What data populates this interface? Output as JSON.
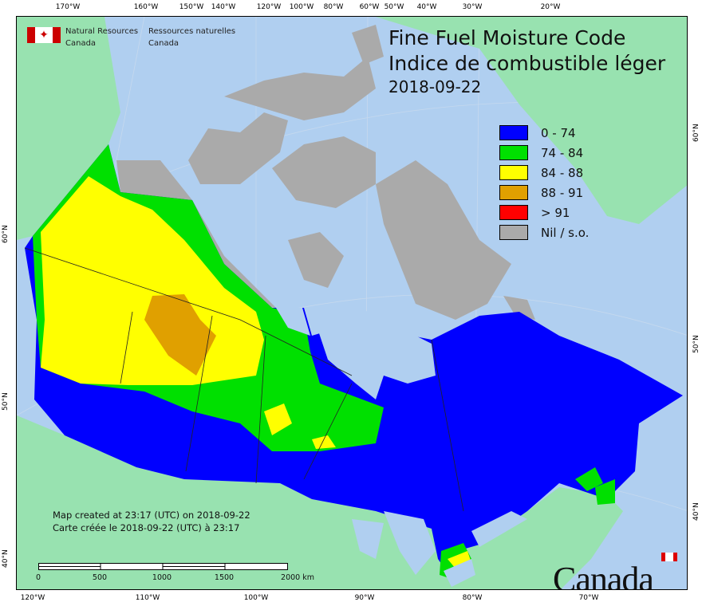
{
  "map": {
    "title_en": "Fine Fuel Moisture Code",
    "title_fr": "Indice de combustible léger",
    "date": "2018-09-22",
    "legend": [
      {
        "label": "0 - 74",
        "color": "#0000ff"
      },
      {
        "label": "74 - 84",
        "color": "#00e000"
      },
      {
        "label": "84 - 88",
        "color": "#ffff00"
      },
      {
        "label": "88 - 91",
        "color": "#e0a000"
      },
      {
        "label": "> 91",
        "color": "#ff0000"
      },
      {
        "label": "Nil / s.o.",
        "color": "#aaaaaa"
      }
    ],
    "colors": {
      "water": "#b0cff0",
      "land_outside": "#98e2b0"
    }
  },
  "header": {
    "nrc_en_1": "Natural Resources",
    "nrc_en_2": "Canada",
    "nrc_fr_1": "Ressources naturelles",
    "nrc_fr_2": "Canada"
  },
  "credit": {
    "line_en": "Map created at 23:17 (UTC) on 2018-09-22",
    "line_fr": "Carte créée le 2018-09-22 (UTC) à 23:17"
  },
  "scale_bar": {
    "labels": [
      "0",
      "500",
      "1000",
      "1500",
      "2000  km"
    ]
  },
  "graticule": {
    "top": [
      "170°W",
      "160°W",
      "150°W",
      "140°W",
      "120°W",
      "100°W",
      "80°W",
      "60°W",
      "50°W",
      "40°W",
      "30°W",
      "20°W"
    ],
    "bottom": [
      "120°W",
      "110°W",
      "100°W",
      "90°W",
      "80°W",
      "70°W"
    ],
    "left": [
      "60°N",
      "50°N",
      "40°N"
    ],
    "right": [
      "60°N",
      "50°N",
      "40°N"
    ]
  },
  "wordmark": "Canada"
}
